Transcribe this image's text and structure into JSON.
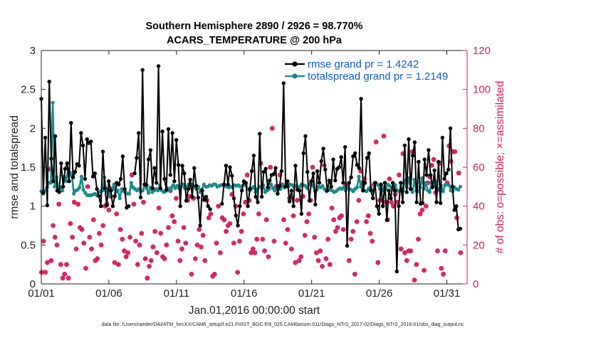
{
  "chart_data": {
    "type": "line",
    "title": "Southern Hemisphere 2890 / 2926 = 98.770%",
    "subtitle": "ACARS_TEMPERATURE @ 200 hPa",
    "xlabel": "Jan.01,2016 00:00:00 start",
    "ylabel": "rmse and totalspread",
    "y2label": "# of obs: o=possible; ×=assimilated",
    "xlim": [
      0,
      31.5
    ],
    "ylim": [
      0,
      3
    ],
    "y2lim": [
      0,
      120
    ],
    "x_tick_labels": [
      "01/01",
      "01/06",
      "01/11",
      "01/16",
      "01/21",
      "01/26",
      "01/31"
    ],
    "y_tick_labels": [
      "0",
      "0.5",
      "1",
      "1.5",
      "2",
      "2.5",
      "3"
    ],
    "y2_tick_labels": [
      "0",
      "20",
      "40",
      "60",
      "80",
      "100",
      "120"
    ],
    "legend_position": "top-right",
    "footnote": "data file: /Users/raeder/DAI/ATM_forcXX/CAM6_setup/f.e21.FHIST_BGC.f09_025.CAM6assim.011/Diags_NTrS_2017-02/Diags_NTrS_2016-01/obs_diag_output.nc",
    "series": [
      {
        "name": "rmse grand pr = 1.4242",
        "color": "#000000",
        "values": [
          2.38,
          1.17,
          1.88,
          1.01,
          2.6,
          1.61,
          1.32,
          1.9,
          1.2,
          1.18,
          1.55,
          1.25,
          1.48,
          1.55,
          1.32,
          2.07,
          1.37,
          1.44,
          1.54,
          1.52,
          1.94,
          1.78,
          1.35,
          1.86,
          1.81,
          1.83,
          1.38,
          1.42,
          1.22,
          1.13,
          1.0,
          1.7,
          1.23,
          1.01,
          1.32,
          1.2,
          1.0,
          1.13,
          1.3,
          1.28,
          1.35,
          1.64,
          1.22,
          0.98,
          1.0,
          null,
          null,
          1.42,
          1.62,
          1.94,
          1.11,
          2.75,
          1.28,
          1.27,
          1.6,
          1.72,
          1.23,
          1.49,
          1.3,
          2.8,
          1.23,
          1.96,
          1.35,
          1.21,
          1.99,
          1.4,
          1.94,
          1.32,
          1.85,
          1.53,
          1.0,
          1.52,
          1.42,
          1.07,
          1.22,
          1.34,
          1.12,
          1.49,
          1.26,
          1.11,
          0.75,
          1.2,
          1.08,
          1.12,
          1.0,
          0.96,
          null,
          null,
          null,
          null,
          null,
          1.03,
          1.28,
          1.52,
          1.28,
          1.5,
          1.39,
          1.1,
          0.88,
          0.75,
          1.0,
          1.2,
          1.32,
          1.3,
          1.0,
          1.22,
          1.45,
          1.65,
          1.12,
          1.05,
          1.93,
          1.12,
          1.44,
          1.48,
          1.24,
          1.33,
          1.4,
          1.41,
          1.49,
          1.16,
          1.26,
          1.45,
          2.58,
          1.25,
          1.32,
          1.06,
          1.2,
          1.0,
          1.52,
          1.21,
          1.2,
          0.9,
          1.68,
          1.9,
          1.44,
          1.07,
          1.32,
          1.42,
          1.02,
          1.45,
          1.3,
          1.58,
          1.74,
          1.47,
          1.2,
          1.33,
          1.25,
          1.6,
          1.33,
          1.48,
          1.5,
          1.63,
          1.3,
          1.76,
          0.49,
          1.3,
          1.37,
          1.64,
          1.68,
          1.53,
          1.49,
          2.38,
          1.2,
          1.3,
          1.62,
          1.68,
          1.2,
          1.1,
          1.3,
          1.0,
          0.9,
          1.28,
          1.0,
          1.3,
          0.82,
          1.2,
          1.1,
          1.3,
          1.2,
          0.16,
          1.0,
          1.3,
          1.05,
          1.78,
          1.18,
          1.86,
          1.22,
          1.65,
          1.82,
          1.05,
          1.57,
          1.03,
          1.04,
          1.6,
          1.4,
          1.72,
          1.4,
          1.24,
          1.46,
          1.05,
          1.57,
          1.04,
          1.88,
          1.35,
          1.42,
          1.47,
          2.0,
          1.25,
          0.95,
          1.0,
          0.7,
          0.71
        ],
        "markers": "filled-circles"
      },
      {
        "name": "totalspread grand pr = 1.2149",
        "color": "#1a8a8a",
        "values": [
          1.19,
          1.16,
          1.2,
          1.24,
          1.3,
          1.3,
          2.33,
          1.25,
          1.37,
          1.22,
          1.24,
          1.2,
          1.38,
          1.32,
          1.48,
          1.43,
          1.39,
          1.16,
          1.2,
          1.21,
          1.24,
          1.38,
          1.21,
          1.17,
          1.14,
          1.14,
          1.14,
          1.15,
          1.16,
          1.14,
          1.18,
          1.19,
          1.2,
          1.37,
          1.18,
          1.22,
          1.14,
          1.21,
          1.28,
          1.18,
          1.2,
          1.1,
          1.22,
          1.19,
          1.18,
          1.16,
          1.16,
          1.3,
          1.24,
          1.22,
          1.2,
          1.22,
          1.19,
          1.2,
          1.27,
          1.23,
          1.17,
          1.24,
          1.18,
          1.2,
          1.22,
          1.2,
          1.27,
          1.2,
          1.18,
          1.19,
          1.23,
          1.2,
          1.24,
          1.27,
          1.23,
          1.26,
          1.23,
          1.25,
          1.28,
          1.23,
          1.25,
          1.28,
          1.24,
          1.28,
          1.25,
          1.22,
          1.25,
          1.18,
          1.22,
          1.28,
          1.25,
          1.25,
          1.27,
          1.26,
          1.28,
          1.28,
          1.25,
          1.26,
          1.27,
          1.27,
          1.26,
          1.25,
          1.24,
          1.25,
          1.24,
          1.27,
          1.26,
          1.27,
          1.25,
          1.26,
          1.3,
          1.27,
          1.22,
          1.2,
          1.23,
          1.25,
          1.18,
          1.22,
          1.25,
          1.24,
          1.27,
          1.18,
          1.2,
          1.22,
          1.28,
          1.23,
          1.2,
          1.23,
          1.26,
          1.22,
          1.27,
          1.24,
          1.29,
          1.25,
          1.28,
          1.27,
          1.25,
          1.26,
          1.22,
          1.25,
          1.28,
          1.27,
          1.26,
          1.23,
          1.28,
          1.32,
          1.26,
          1.2,
          1.21,
          1.25,
          1.24,
          1.26,
          1.22,
          1.19,
          1.22,
          1.21,
          1.2,
          1.18,
          1.19,
          1.21,
          1.23,
          1.22,
          1.24,
          1.2,
          1.23,
          1.22,
          1.21,
          1.19,
          1.22,
          1.24,
          1.38,
          1.25,
          1.23,
          1.2,
          1.19,
          1.22,
          1.24,
          1.19,
          1.22,
          1.3,
          1.27,
          1.22,
          1.26,
          1.2,
          1.22,
          1.28,
          1.26,
          1.24,
          1.22,
          1.27,
          1.2,
          1.19,
          1.22,
          1.2,
          1.33,
          1.24,
          1.36,
          1.22,
          1.18,
          1.34,
          1.2,
          1.19,
          1.24,
          1.36,
          1.22,
          1.3,
          1.2,
          1.18,
          1.3,
          1.26,
          1.32,
          1.2,
          1.22,
          1.26,
          1.19,
          1.27,
          1.28,
          1.27,
          1.2,
          1.19,
          1.24,
          1.22,
          1.21,
          1.25
        ],
        "markers": "filled-circles"
      }
    ],
    "obs_possible": {
      "name": "o=possible",
      "axis": "right",
      "color": "#d41e5c",
      "values": [
        6,
        22,
        6,
        11,
        59,
        12,
        30,
        24,
        20,
        41,
        10,
        3,
        5,
        10,
        3,
        31,
        24,
        42,
        18,
        41,
        29,
        28,
        21,
        8,
        50,
        24,
        18,
        33,
        12,
        13,
        26,
        20,
        30,
        40,
        41,
        38,
        45,
        49,
        11,
        36,
        10,
        28,
        23,
        17,
        14,
        16,
        24,
        56,
        41,
        22,
        10,
        20,
        26,
        42,
        13,
        3,
        9,
        12,
        19,
        27,
        16,
        39,
        26,
        14,
        13,
        20,
        29,
        48,
        35,
        32,
        44,
        22,
        12,
        18,
        29,
        21,
        43,
        45,
        5,
        44,
        13,
        20,
        28,
        19,
        25,
        12,
        43,
        34,
        36,
        4,
        5,
        21,
        40,
        16,
        34,
        33,
        27,
        30,
        31,
        46,
        21,
        40,
        6,
        22,
        27,
        36,
        42,
        56,
        43,
        16,
        18,
        16,
        23,
        36,
        62,
        23,
        17,
        33,
        14,
        60,
        80,
        22,
        50,
        50,
        56,
        51,
        33,
        21,
        28,
        44,
        18,
        35,
        11,
        43,
        12,
        14,
        45,
        25,
        32,
        36,
        43,
        60,
        24,
        16,
        12,
        17,
        9,
        61,
        13,
        23,
        10,
        39,
        33,
        27,
        29,
        34,
        35,
        28,
        50,
        51,
        12,
        23,
        27,
        5,
        32,
        43,
        58,
        52,
        54,
        32,
        35,
        26,
        22,
        51,
        73,
        11,
        43,
        49,
        76,
        42,
        33,
        54,
        42,
        40,
        46,
        42,
        56,
        18,
        67,
        16,
        12,
        17,
        17,
        68,
        2,
        10,
        23,
        36,
        38,
        7,
        40,
        52,
        55,
        61,
        64,
        47,
        17,
        62,
        8,
        5,
        17,
        52,
        71,
        63,
        68,
        68,
        34,
        57,
        16
      ]
    },
    "obs_assimilated": {
      "name": "×=assimilated",
      "axis": "right",
      "color": "#d41e5c",
      "values": [
        6,
        22,
        6,
        11,
        59,
        12,
        30,
        24,
        20,
        41,
        10,
        3,
        5,
        10,
        3,
        31,
        24,
        42,
        18,
        41,
        29,
        28,
        21,
        8,
        50,
        24,
        18,
        33,
        12,
        13,
        26,
        20,
        30,
        40,
        41,
        38,
        45,
        49,
        11,
        36,
        10,
        28,
        23,
        17,
        14,
        16,
        24,
        56,
        41,
        22,
        10,
        20,
        26,
        42,
        13,
        3,
        9,
        12,
        19,
        27,
        16,
        39,
        26,
        14,
        13,
        20,
        29,
        48,
        35,
        32,
        44,
        22,
        12,
        18,
        29,
        21,
        43,
        45,
        5,
        44,
        13,
        20,
        28,
        19,
        25,
        12,
        43,
        34,
        36,
        4,
        5,
        21,
        40,
        16,
        34,
        33,
        27,
        30,
        31,
        46,
        21,
        40,
        6,
        22,
        27,
        36,
        42,
        56,
        43,
        16,
        18,
        16,
        23,
        36,
        62,
        23,
        17,
        33,
        14,
        60,
        80,
        22,
        50,
        50,
        56,
        51,
        33,
        21,
        28,
        44,
        18,
        35,
        11,
        43,
        12,
        14,
        45,
        25,
        32,
        36,
        43,
        60,
        24,
        16,
        12,
        17,
        9,
        61,
        13,
        23,
        10,
        39,
        33,
        27,
        29,
        34,
        35,
        28,
        50,
        51,
        12,
        23,
        27,
        5,
        32,
        43,
        58,
        52,
        54,
        32,
        35,
        26,
        22,
        51,
        73,
        11,
        43,
        49,
        76,
        42,
        33,
        54,
        42,
        40,
        46,
        42,
        56,
        18,
        67,
        16,
        12,
        17,
        17,
        68,
        2,
        10,
        23,
        36,
        38,
        7,
        40,
        52,
        55,
        61,
        64,
        47,
        17,
        62,
        8,
        5,
        17,
        52,
        71,
        63,
        68,
        68,
        34,
        57,
        16
      ]
    }
  }
}
